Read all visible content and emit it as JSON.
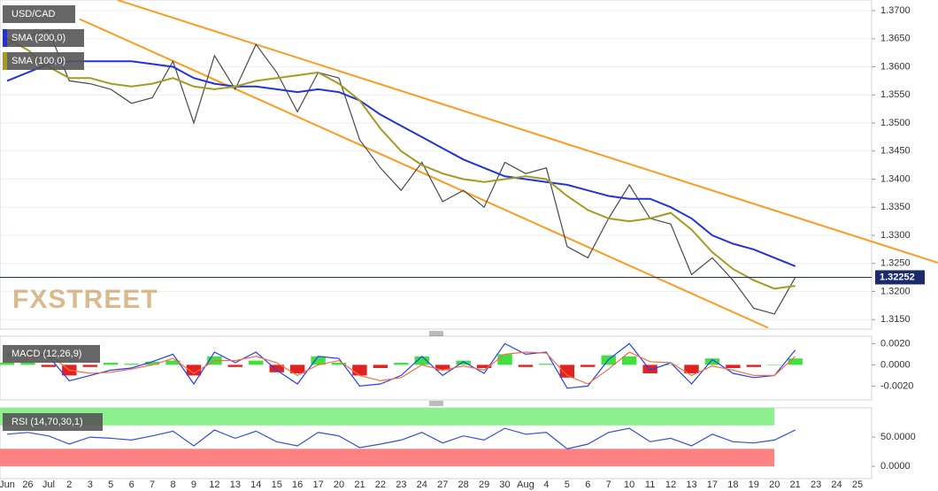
{
  "watermark": "FXSTREET",
  "chart_data": [
    {
      "type": "line",
      "title": "USD/CAD",
      "color": "#4a4a4a",
      "ylim": [
        1.3133,
        1.3719
      ],
      "yticks": [
        {
          "value": 1.315,
          "label": "1.3150"
        },
        {
          "value": 1.32,
          "label": "1.3200"
        },
        {
          "value": 1.325,
          "label": "1.3250"
        },
        {
          "value": 1.33,
          "label": "1.3300"
        },
        {
          "value": 1.335,
          "label": "1.3350"
        },
        {
          "value": 1.34,
          "label": "1.3400"
        },
        {
          "value": 1.345,
          "label": "1.3450"
        },
        {
          "value": 1.35,
          "label": "1.3500"
        },
        {
          "value": 1.355,
          "label": "1.3550"
        },
        {
          "value": 1.36,
          "label": "1.3600"
        },
        {
          "value": 1.365,
          "label": "1.3650"
        },
        {
          "value": 1.37,
          "label": "1.3700"
        }
      ],
      "grid": true,
      "values": [
        1.364,
        1.3655,
        1.3665,
        1.3575,
        1.357,
        1.356,
        1.3535,
        1.3545,
        1.361,
        1.35,
        1.362,
        1.356,
        1.364,
        1.359,
        1.352,
        1.359,
        1.358,
        1.347,
        1.342,
        1.338,
        1.343,
        1.336,
        1.338,
        1.335,
        1.343,
        1.341,
        1.342,
        1.328,
        1.326,
        1.333,
        1.339,
        1.333,
        1.332,
        1.323,
        1.326,
        1.322,
        1.317,
        1.316,
        1.3225,
        null,
        null,
        null
      ],
      "series": [
        {
          "name": "SMA (200,0)",
          "color": "#2233dd",
          "values": [
            1.3575,
            1.359,
            1.3605,
            1.361,
            1.361,
            1.361,
            1.361,
            1.3605,
            1.36,
            1.358,
            1.357,
            1.3565,
            1.3565,
            1.356,
            1.3555,
            1.356,
            1.3555,
            1.354,
            1.3515,
            1.3495,
            1.3475,
            1.3455,
            1.3435,
            1.342,
            1.3405,
            1.34,
            1.3395,
            1.339,
            1.338,
            1.337,
            1.3365,
            1.3365,
            1.335,
            1.333,
            1.33,
            1.3285,
            1.3275,
            1.326,
            1.3245,
            null,
            null,
            null
          ]
        },
        {
          "name": "SMA (100,0)",
          "color": "#a39b22",
          "values": [
            1.365,
            1.363,
            1.36,
            1.358,
            1.358,
            1.357,
            1.3565,
            1.357,
            1.358,
            1.3565,
            1.356,
            1.3565,
            1.3575,
            1.358,
            1.3585,
            1.359,
            1.357,
            1.354,
            1.349,
            1.345,
            1.3425,
            1.341,
            1.34,
            1.3395,
            1.34,
            1.3405,
            1.34,
            1.337,
            1.3345,
            1.333,
            1.3325,
            1.333,
            1.334,
            1.331,
            1.327,
            1.324,
            1.322,
            1.3205,
            1.321,
            null,
            null,
            null
          ]
        }
      ],
      "trendlines": [
        {
          "color": "#ff9a1e",
          "x": [
            5.33,
            45.07
          ],
          "values": [
            1.37189,
            1.3249
          ]
        },
        {
          "color": "#ff9a1e",
          "x": [
            3.49,
            36.68
          ],
          "values": [
            1.36852,
            1.31355
          ]
        }
      ],
      "last_price": 1.32252,
      "last_price_color": "#1a2a6c"
    },
    {
      "type": "macd",
      "title": "MACD (12,26,9)",
      "ylim": [
        -0.0033,
        0.0027
      ],
      "yticks": [
        {
          "value": -0.002,
          "label": "-0.0020"
        },
        {
          "value": 0,
          "label": "0.0000"
        },
        {
          "value": 0.002,
          "label": "0.0020"
        }
      ],
      "up_color": "#3fe03f",
      "down_color": "#e02222",
      "histogram": [
        0.0002,
        0.0002,
        -0.0002,
        -0.001,
        -0.0002,
        0.0002,
        0.0001,
        0.0003,
        0.0004,
        -0.001,
        0.0008,
        -0.0002,
        0.0004,
        -0.0007,
        -0.0008,
        0.0008,
        0.0002,
        -0.001,
        -0.0003,
        0.0002,
        0.0008,
        -0.0005,
        0.0004,
        -0.0003,
        0.001,
        -0.0002,
        0.0001,
        -0.0012,
        -0.0002,
        0.0009,
        0.0008,
        -0.0008,
        0,
        -0.0008,
        0.0006,
        -0.0003,
        -0.0002,
        0,
        0.0006,
        null,
        null,
        null
      ],
      "series": [
        {
          "color": "#2040ff",
          "values": [
            0.001,
            0.0012,
            0.0008,
            -0.0015,
            -0.001,
            -0.0005,
            -0.0003,
            0.0003,
            0.001,
            -0.0018,
            0.0012,
            0.0002,
            0.0012,
            -0.0005,
            -0.0018,
            0.0008,
            0.0006,
            -0.002,
            -0.0018,
            -0.001,
            0.0008,
            -0.001,
            0.0003,
            -0.0008,
            0.002,
            0.001,
            0.0012,
            -0.0022,
            -0.002,
            0.0005,
            0.002,
            -0.0005,
            0.0002,
            -0.0018,
            0.0005,
            -0.0008,
            -0.0012,
            -0.001,
            0.0014,
            null,
            null,
            null
          ]
        },
        {
          "color": "#ff6a3a",
          "values": [
            0.0008,
            0.001,
            0.001,
            -0.0005,
            -0.0008,
            -0.0007,
            -0.0004,
            0,
            0.0006,
            -0.0008,
            0.0004,
            0.0004,
            0.0008,
            0.0002,
            -0.001,
            0,
            0.0004,
            -0.001,
            -0.0015,
            -0.0012,
            0,
            -0.0005,
            -0.0001,
            -0.0005,
            0.001,
            0.0012,
            0.0011,
            -0.001,
            -0.0018,
            -0.0004,
            0.0012,
            0.0003,
            0.0002,
            -0.001,
            -0.0001,
            -0.0005,
            -0.001,
            -0.001,
            0.0008,
            null,
            null,
            null
          ]
        }
      ]
    },
    {
      "type": "rsi",
      "title": "RSI (14,70,30,1)",
      "color": "#3050e0",
      "ylim": [
        -21,
        100
      ],
      "yticks": [
        {
          "value": 0,
          "label": "0.0000"
        },
        {
          "value": 50,
          "label": "50.0000"
        }
      ],
      "overbought": 70,
      "oversold": 30,
      "overbought_color": "#8cf08c",
      "oversold_color": "#ff8282",
      "values": [
        55,
        58,
        52,
        38,
        50,
        48,
        45,
        52,
        60,
        35,
        62,
        48,
        60,
        42,
        35,
        58,
        52,
        32,
        38,
        45,
        58,
        40,
        52,
        45,
        65,
        55,
        58,
        30,
        38,
        58,
        65,
        42,
        48,
        35,
        55,
        42,
        40,
        45,
        62,
        null,
        null,
        null
      ],
      "categories": [
        "Jun",
        "26",
        "Jul",
        "2",
        "3",
        "5",
        "6",
        "7",
        "8",
        "9",
        "12",
        "13",
        "14",
        "15",
        "16",
        "17",
        "20",
        "21",
        "22",
        "23",
        "24",
        "27",
        "28",
        "29",
        "30",
        "Aug",
        "4",
        "5",
        "6",
        "7",
        "10",
        "11",
        "12",
        "13",
        "17",
        "18",
        "19",
        "20",
        "21",
        "23",
        "24",
        "25"
      ]
    }
  ]
}
